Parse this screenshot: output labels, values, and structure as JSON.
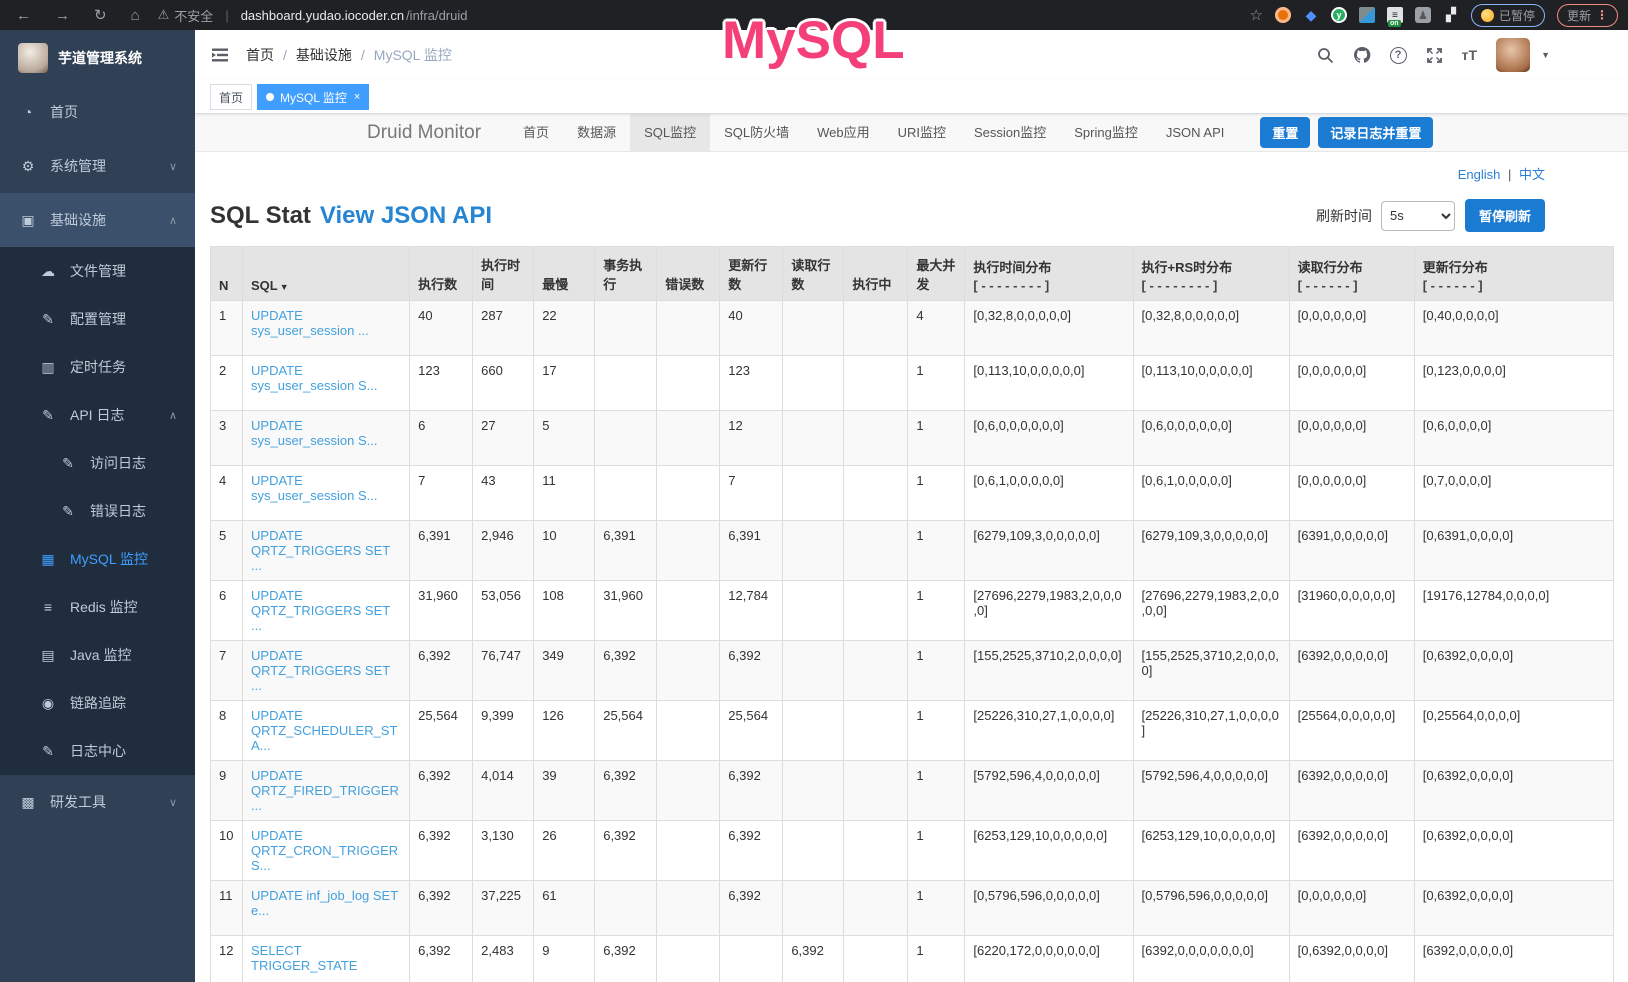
{
  "browser": {
    "security_label": "不安全",
    "url_host": "dashboard.yudao.iocoder.cn",
    "url_path": "/infra/druid",
    "paused_label": "已暂停",
    "update_label": "更新",
    "extension_badge": "on"
  },
  "overlay": {
    "text": "MySQL",
    "color": "#f43f78"
  },
  "sidebar": {
    "app_title": "芋道管理系统",
    "items": [
      {
        "label": "首页",
        "icon": "dashboard",
        "level": 0
      },
      {
        "label": "系统管理",
        "icon": "gear",
        "level": 0,
        "chevron": "down"
      },
      {
        "label": "基础设施",
        "icon": "infrastructure",
        "level": 0,
        "chevron": "up",
        "open": true
      },
      {
        "label": "文件管理",
        "icon": "cloud-upload",
        "level": 1
      },
      {
        "label": "配置管理",
        "icon": "edit",
        "level": 1
      },
      {
        "label": "定时任务",
        "icon": "schedule",
        "level": 1
      },
      {
        "label": "API 日志",
        "icon": "edit",
        "level": 1,
        "chevron": "up"
      },
      {
        "label": "访问日志",
        "icon": "edit",
        "level": 2
      },
      {
        "label": "错误日志",
        "icon": "edit",
        "level": 2
      },
      {
        "label": "MySQL 监控",
        "icon": "table",
        "level": 1,
        "active": true
      },
      {
        "label": "Redis 监控",
        "icon": "layers",
        "level": 1
      },
      {
        "label": "Java 监控",
        "icon": "monitor",
        "level": 1
      },
      {
        "label": "链路追踪",
        "icon": "eye",
        "level": 1
      },
      {
        "label": "日志中心",
        "icon": "edit",
        "level": 1
      },
      {
        "label": "研发工具",
        "icon": "toolbox",
        "level": 0,
        "chevron": "down"
      }
    ]
  },
  "header": {
    "breadcrumb": [
      "首页",
      "基础设施",
      "MySQL 监控"
    ]
  },
  "tabs": [
    {
      "label": "首页",
      "active": false
    },
    {
      "label": "MySQL 监控",
      "active": true,
      "closable": true
    }
  ],
  "druid": {
    "brand": "Druid Monitor",
    "nav": [
      "首页",
      "数据源",
      "SQL监控",
      "SQL防火墙",
      "Web应用",
      "URI监控",
      "Session监控",
      "Spring监控",
      "JSON API"
    ],
    "active_nav": "SQL监控",
    "buttons": [
      "重置",
      "记录日志并重置"
    ]
  },
  "content": {
    "lang_links": [
      "English",
      "中文"
    ],
    "title": "SQL Stat",
    "title_link": "View JSON API",
    "refresh_label": "刷新时间",
    "refresh_value": "5s",
    "pause_button": "暂停刷新"
  },
  "table": {
    "headers": [
      {
        "label": "N"
      },
      {
        "label": "SQL",
        "sort": "▼"
      },
      {
        "label": "执行数"
      },
      {
        "label": "执行时间"
      },
      {
        "label": "最慢"
      },
      {
        "label": "事务执行"
      },
      {
        "label": "错误数"
      },
      {
        "label": "更新行数"
      },
      {
        "label": "读取行数"
      },
      {
        "label": "执行中"
      },
      {
        "label": "最大并发"
      },
      {
        "label": "执行时间分布",
        "sub": "[ - - - - - - - - ]"
      },
      {
        "label": "执行+RS时分布",
        "sub": "[ - - - - - - - - ]"
      },
      {
        "label": "读取行分布",
        "sub": "[ - - - - - - ]"
      },
      {
        "label": "更新行分布",
        "sub": "[ - - - - - - ]"
      }
    ],
    "rows": [
      [
        "1",
        "UPDATE sys_user_session ...",
        "40",
        "287",
        "22",
        "",
        "",
        "40",
        "",
        "",
        "4",
        "[0,32,8,0,0,0,0,0]",
        "[0,32,8,0,0,0,0,0]",
        "[0,0,0,0,0,0]",
        "[0,40,0,0,0,0]"
      ],
      [
        "2",
        "UPDATE sys_user_session S...",
        "123",
        "660",
        "17",
        "",
        "",
        "123",
        "",
        "",
        "1",
        "[0,113,10,0,0,0,0,0]",
        "[0,113,10,0,0,0,0,0]",
        "[0,0,0,0,0,0]",
        "[0,123,0,0,0,0]"
      ],
      [
        "3",
        "UPDATE sys_user_session S...",
        "6",
        "27",
        "5",
        "",
        "",
        "12",
        "",
        "",
        "1",
        "[0,6,0,0,0,0,0,0]",
        "[0,6,0,0,0,0,0,0]",
        "[0,0,0,0,0,0]",
        "[0,6,0,0,0,0]"
      ],
      [
        "4",
        "UPDATE sys_user_session S...",
        "7",
        "43",
        "11",
        "",
        "",
        "7",
        "",
        "",
        "1",
        "[0,6,1,0,0,0,0,0]",
        "[0,6,1,0,0,0,0,0]",
        "[0,0,0,0,0,0]",
        "[0,7,0,0,0,0]"
      ],
      [
        "5",
        "UPDATE QRTZ_TRIGGERS SET ...",
        "6,391",
        "2,946",
        "10",
        "6,391",
        "",
        "6,391",
        "",
        "",
        "1",
        "[6279,109,3,0,0,0,0,0]",
        "[6279,109,3,0,0,0,0,0]",
        "[6391,0,0,0,0,0]",
        "[0,6391,0,0,0,0]"
      ],
      [
        "6",
        "UPDATE QRTZ_TRIGGERS SET ...",
        "31,960",
        "53,056",
        "108",
        "31,960",
        "",
        "12,784",
        "",
        "",
        "1",
        "[27696,2279,1983,2,0,0,0,0]",
        "[27696,2279,1983,2,0,0,0,0]",
        "[31960,0,0,0,0,0]",
        "[19176,12784,0,0,0,0]"
      ],
      [
        "7",
        "UPDATE QRTZ_TRIGGERS SET ...",
        "6,392",
        "76,747",
        "349",
        "6,392",
        "",
        "6,392",
        "",
        "",
        "1",
        "[155,2525,3710,2,0,0,0,0]",
        "[155,2525,3710,2,0,0,0,0]",
        "[6392,0,0,0,0,0]",
        "[0,6392,0,0,0,0]"
      ],
      [
        "8",
        "UPDATE QRTZ_SCHEDULER_STA...",
        "25,564",
        "9,399",
        "126",
        "25,564",
        "",
        "25,564",
        "",
        "",
        "1",
        "[25226,310,27,1,0,0,0,0]",
        "[25226,310,27,1,0,0,0,0]",
        "[25564,0,0,0,0,0]",
        "[0,25564,0,0,0,0]"
      ],
      [
        "9",
        "UPDATE QRTZ_FIRED_TRIGGER...",
        "6,392",
        "4,014",
        "39",
        "6,392",
        "",
        "6,392",
        "",
        "",
        "1",
        "[5792,596,4,0,0,0,0,0]",
        "[5792,596,4,0,0,0,0,0]",
        "[6392,0,0,0,0,0]",
        "[0,6392,0,0,0,0]"
      ],
      [
        "10",
        "UPDATE QRTZ_CRON_TRIGGERS...",
        "6,392",
        "3,130",
        "26",
        "6,392",
        "",
        "6,392",
        "",
        "",
        "1",
        "[6253,129,10,0,0,0,0,0]",
        "[6253,129,10,0,0,0,0,0]",
        "[6392,0,0,0,0,0]",
        "[0,6392,0,0,0,0]"
      ],
      [
        "11",
        "UPDATE inf_job_log SET e...",
        "6,392",
        "37,225",
        "61",
        "",
        "",
        "6,392",
        "",
        "",
        "1",
        "[0,5796,596,0,0,0,0,0]",
        "[0,5796,596,0,0,0,0,0]",
        "[0,0,0,0,0,0]",
        "[0,6392,0,0,0,0]"
      ],
      [
        "12",
        "SELECT TRIGGER_STATE",
        "6,392",
        "2,483",
        "9",
        "6,392",
        "",
        "",
        "6,392",
        "",
        "1",
        "[6220,172,0,0,0,0,0,0]",
        "[6392,0,0,0,0,0,0,0]",
        "[0,6392,0,0,0,0]",
        "[6392,0,0,0,0,0]"
      ]
    ]
  }
}
